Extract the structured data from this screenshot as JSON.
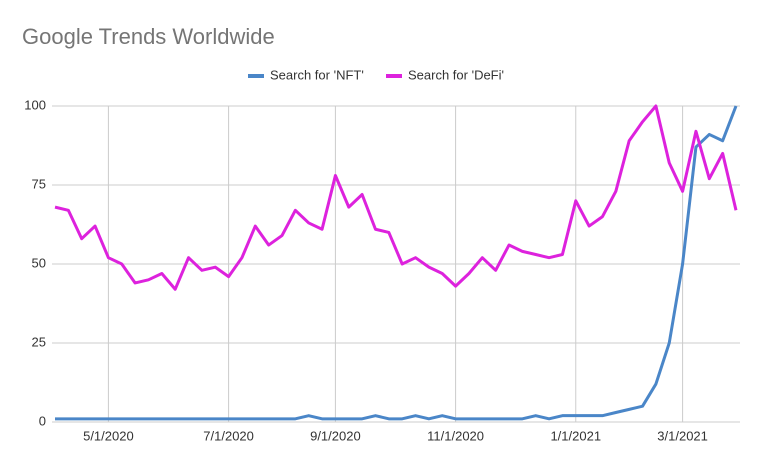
{
  "chart_data": {
    "type": "line",
    "title": "Google Trends Worldwide",
    "categories": [
      null,
      null,
      null,
      null,
      "5/1/2020",
      null,
      null,
      null,
      null,
      null,
      null,
      null,
      null,
      "7/1/2020",
      null,
      null,
      null,
      null,
      null,
      null,
      null,
      "9/1/2020",
      null,
      null,
      null,
      null,
      null,
      null,
      null,
      null,
      "11/1/2020",
      null,
      null,
      null,
      null,
      null,
      null,
      null,
      null,
      "1/1/2021",
      null,
      null,
      null,
      null,
      null,
      null,
      null,
      "3/1/2021",
      null,
      null,
      null,
      null
    ],
    "series": [
      {
        "name": "Search for 'NFT'",
        "color": "#4a86c8",
        "values": [
          1,
          1,
          1,
          1,
          1,
          1,
          1,
          1,
          1,
          1,
          1,
          1,
          1,
          1,
          1,
          1,
          1,
          1,
          1,
          2,
          1,
          1,
          1,
          1,
          2,
          1,
          1,
          2,
          1,
          2,
          1,
          1,
          1,
          1,
          1,
          1,
          2,
          1,
          2,
          2,
          2,
          2,
          3,
          4,
          5,
          12,
          25,
          50,
          87,
          91,
          89,
          100
        ]
      },
      {
        "name": "Search for 'DeFi'",
        "color": "#dd22dd",
        "values": [
          68,
          67,
          58,
          62,
          52,
          50,
          44,
          45,
          47,
          42,
          52,
          48,
          49,
          46,
          52,
          62,
          56,
          59,
          67,
          63,
          61,
          78,
          68,
          72,
          61,
          60,
          50,
          52,
          49,
          47,
          43,
          47,
          52,
          48,
          56,
          54,
          53,
          52,
          53,
          70,
          62,
          65,
          73,
          89,
          95,
          100,
          82,
          73,
          92,
          77,
          85,
          67
        ]
      }
    ],
    "ylim": [
      0,
      100
    ],
    "yticks": [
      0,
      25,
      50,
      75,
      100
    ],
    "grid": true,
    "legend": "top"
  }
}
